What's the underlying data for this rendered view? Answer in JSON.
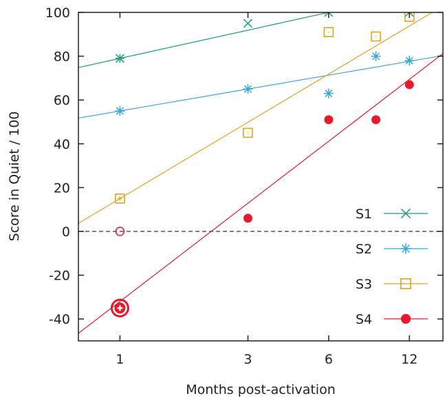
{
  "chart_data": {
    "type": "scatter",
    "xlabel": "Months post-activation",
    "ylabel": "Score in Quiet / 100",
    "x_scale": "log",
    "xlim": [
      0.7,
      16
    ],
    "ylim": [
      -50,
      100
    ],
    "x_ticks": [
      1,
      3,
      6,
      12
    ],
    "y_ticks": [
      100,
      80,
      60,
      40,
      20,
      0,
      -20,
      -40
    ],
    "grid": false,
    "zero_line": "dashed",
    "legend": "right",
    "series": [
      {
        "name": "S1",
        "marker": "x",
        "color": "#1a9e73",
        "points": [
          {
            "x": 1,
            "y": 79
          },
          {
            "x": 3,
            "y": 95
          },
          {
            "x": 6,
            "y": 100
          },
          {
            "x": 12,
            "y": 100
          }
        ],
        "fit": {
          "intercept": 79,
          "slope_per_log10_month": 27
        }
      },
      {
        "name": "S2",
        "marker": "asterisk",
        "color": "#37a7db",
        "points": [
          {
            "x": 1,
            "y": 55
          },
          {
            "x": 3,
            "y": 65
          },
          {
            "x": 6,
            "y": 63
          },
          {
            "x": 9,
            "y": 80
          },
          {
            "x": 12,
            "y": 78
          }
        ],
        "fit": {
          "intercept": 55,
          "slope_per_log10_month": 21
        }
      },
      {
        "name": "S3",
        "marker": "open-square",
        "color": "#e4a21f",
        "points": [
          {
            "x": 1,
            "y": 15
          },
          {
            "x": 3,
            "y": 45
          },
          {
            "x": 6,
            "y": 91
          },
          {
            "x": 9,
            "y": 89
          },
          {
            "x": 12,
            "y": 98
          }
        ],
        "fit": {
          "intercept": 15,
          "slope_per_log10_month": 73
        }
      },
      {
        "name": "S4",
        "marker": "filled-circle",
        "color": "#e8192c",
        "points": [
          {
            "x": 1,
            "y": -35
          },
          {
            "x": 1,
            "y": 0
          },
          {
            "x": 3,
            "y": 6
          },
          {
            "x": 6,
            "y": 51
          },
          {
            "x": 9,
            "y": 51
          },
          {
            "x": 12,
            "y": 67
          }
        ],
        "fit": {
          "intercept": -32,
          "slope_per_log10_month": 94
        }
      }
    ]
  }
}
